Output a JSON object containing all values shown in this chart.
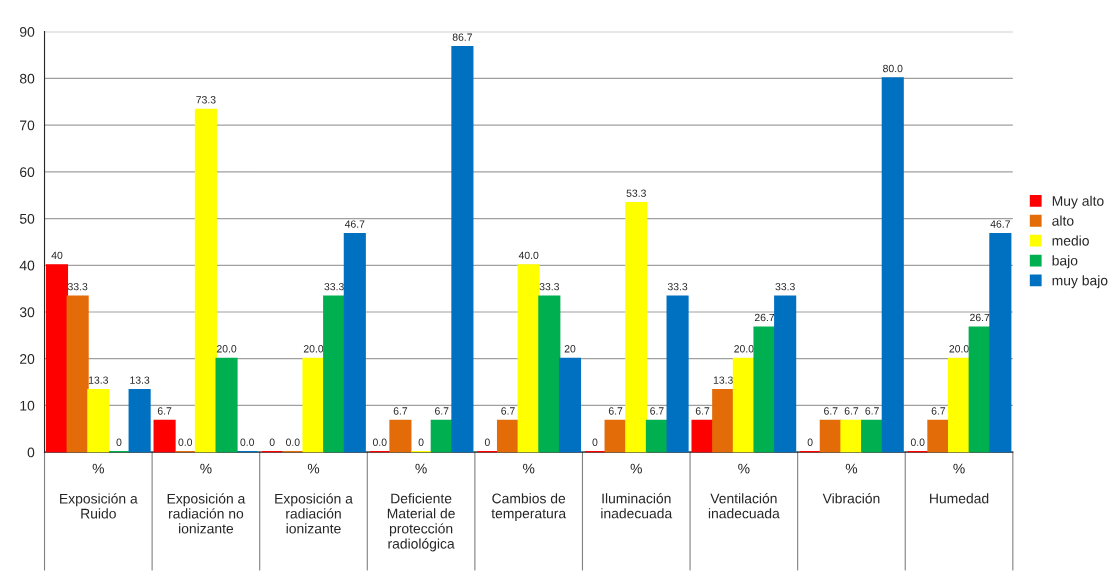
{
  "chart_data": {
    "type": "bar",
    "categories": [
      "%\n\nExposición a\nRuido",
      "%\n\nExposición a\nradiación no\nionizante",
      "%\n\nExposición a\nradiación\nionizante",
      "%\n\nDeficiente\nMaterial de\nprotección\nradiológica",
      "%\n\nCambios de\ntemperatura",
      "%\n\nIluminación\ninadecuada",
      "%\n\nVentilación\ninadecuada",
      "%\n\nVibración",
      "%\n\nHumedad"
    ],
    "series": [
      {
        "name": "Muy alto",
        "color": "#ff0000",
        "values": [
          40,
          6.7,
          0,
          0,
          0,
          0,
          6.7,
          0,
          0
        ],
        "value_labels": [
          "40",
          "6.7",
          "0",
          "0.0",
          "0",
          "0",
          "6.7",
          "0",
          "0.0"
        ]
      },
      {
        "name": "alto",
        "color": "#e36c09",
        "values": [
          33.3,
          0,
          0,
          6.7,
          6.7,
          6.7,
          13.3,
          6.7,
          6.7
        ],
        "value_labels": [
          "33.3",
          "0.0",
          "0.0",
          "6.7",
          "6.7",
          "6.7",
          "13.3",
          "6.7",
          "6.7"
        ]
      },
      {
        "name": "medio",
        "color": "#ffff00",
        "values": [
          13.3,
          73.3,
          20,
          0,
          40,
          53.3,
          20,
          6.7,
          20
        ],
        "value_labels": [
          "13.3",
          "73.3",
          "20.0",
          "0",
          "40.0",
          "53.3",
          "20.0",
          "6.7",
          "20.0"
        ]
      },
      {
        "name": "bajo",
        "color": "#00b050",
        "values": [
          0,
          20,
          33.3,
          6.7,
          33.3,
          6.7,
          26.7,
          6.7,
          26.7
        ],
        "value_labels": [
          "0",
          "20.0",
          "33.3",
          "6.7",
          "33.3",
          "6.7",
          "26.7",
          "6.7",
          "26.7"
        ]
      },
      {
        "name": "muy bajo",
        "color": "#0070c0",
        "values": [
          13.3,
          0,
          46.7,
          86.7,
          20,
          33.3,
          33.3,
          80,
          46.7
        ],
        "value_labels": [
          "13.3",
          "0.0",
          "46.7",
          "86.7",
          "20",
          "33.3",
          "33.3",
          "80.0",
          "46.7"
        ]
      }
    ],
    "ylim": [
      0,
      90
    ],
    "yticks": [
      0,
      10,
      20,
      30,
      40,
      50,
      60,
      70,
      80,
      90
    ],
    "grid": "y",
    "legend": "right"
  }
}
